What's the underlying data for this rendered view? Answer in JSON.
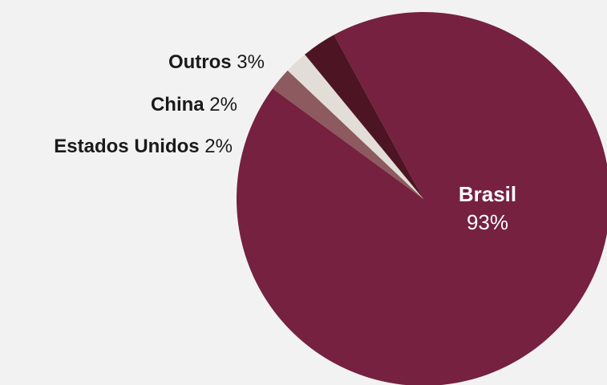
{
  "chart_data": {
    "type": "pie",
    "title": "",
    "slices": [
      {
        "name": "Brasil",
        "value": 93,
        "value_label": "93%",
        "color": "#75213f",
        "label_position": "inside"
      },
      {
        "name": "Estados Unidos",
        "value": 2,
        "value_label": "2%",
        "color": "#8c5a5f",
        "label_position": "outside"
      },
      {
        "name": "China",
        "value": 2,
        "value_label": "2%",
        "color": "#e3ddd8",
        "label_position": "outside"
      },
      {
        "name": "Outros",
        "value": 3,
        "value_label": "3%",
        "color": "#4d1523",
        "label_position": "outside"
      }
    ],
    "legend": false
  }
}
